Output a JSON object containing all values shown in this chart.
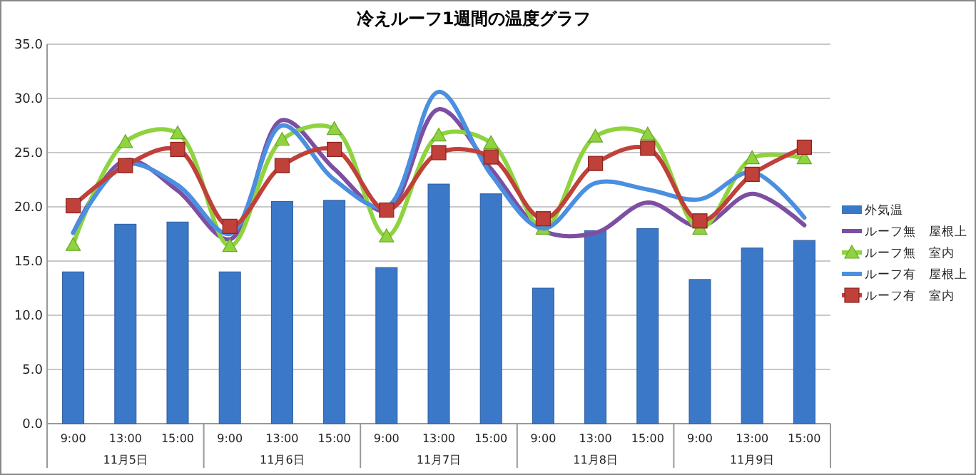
{
  "chart_data": {
    "type": "bar",
    "title": "冷えルーフ1週間の温度グラフ",
    "categories": [
      "9:00",
      "13:00",
      "15:00",
      "9:00",
      "13:00",
      "15:00",
      "9:00",
      "13:00",
      "15:00",
      "9:00",
      "13:00",
      "15:00",
      "9:00",
      "13:00",
      "15:00"
    ],
    "annotations": [
      "11月5日",
      "11月6日",
      "11月7日",
      "11月8日",
      "11月9日"
    ],
    "series": [
      {
        "name": "外気温",
        "color": "#3b78c8",
        "values": [
          14.0,
          18.4,
          18.6,
          14.0,
          20.5,
          20.6,
          14.4,
          22.1,
          21.2,
          12.5,
          17.8,
          18.0,
          13.3,
          16.2,
          16.9
        ]
      },
      {
        "name": "ルーフ無　屋根上",
        "type": "line",
        "color": "#7d4fa3",
        "marker": "none",
        "values": [
          17.6,
          24.3,
          21.5,
          17.0,
          28.0,
          23.5,
          19.6,
          29.0,
          23.5,
          17.8,
          17.6,
          20.4,
          18.2,
          21.2,
          18.3
        ]
      },
      {
        "name": "ルーフ無　室内",
        "type": "line",
        "color": "#8fd33f",
        "marker": "triangle",
        "values": [
          16.5,
          26.0,
          26.8,
          16.4,
          26.2,
          27.2,
          17.3,
          26.6,
          25.9,
          18.0,
          26.5,
          26.7,
          18.0,
          24.5,
          24.5
        ]
      },
      {
        "name": "ルーフ有　屋根上",
        "type": "line",
        "color": "#4a8fe0",
        "marker": "none",
        "values": [
          17.6,
          23.9,
          22.0,
          17.5,
          27.5,
          22.5,
          20.0,
          30.6,
          23.0,
          18.0,
          22.2,
          21.6,
          20.7,
          23.2,
          19.0
        ]
      },
      {
        "name": "ルーフ有　室内",
        "type": "line",
        "color": "#c0403a",
        "marker": "square",
        "values": [
          20.1,
          23.8,
          25.3,
          18.2,
          23.8,
          25.3,
          19.7,
          25.0,
          24.6,
          18.9,
          24.0,
          25.4,
          18.7,
          23.0,
          25.5
        ]
      }
    ],
    "ylim": [
      0,
      35
    ],
    "yticks": [
      {
        "value": 0,
        "label": "0.0"
      },
      {
        "value": 5,
        "label": "5.0"
      },
      {
        "value": 10,
        "label": "10.0"
      },
      {
        "value": 15,
        "label": "15.0"
      },
      {
        "value": 20,
        "label": "20.0"
      },
      {
        "value": 25,
        "label": "25.0"
      },
      {
        "value": 30,
        "label": "30.0"
      },
      {
        "value": 35,
        "label": "35.0"
      }
    ],
    "grid": "y",
    "legend": "right",
    "line_style": "solid"
  }
}
